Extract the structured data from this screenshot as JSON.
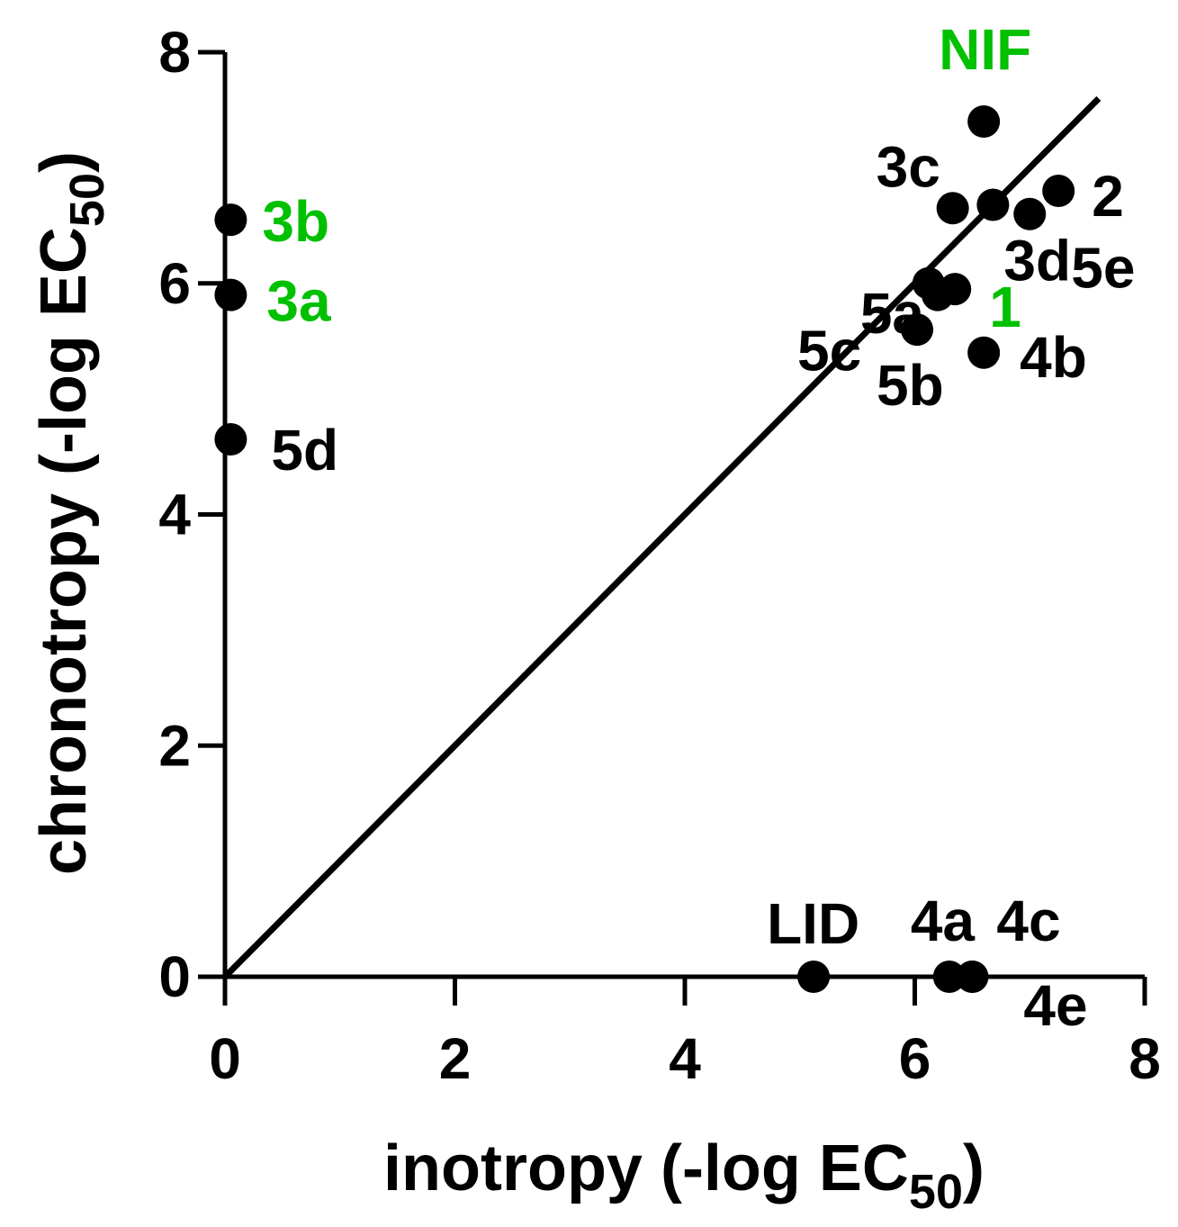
{
  "chart_data": {
    "type": "scatter",
    "title": "",
    "xlabel": {
      "main": "inotropy (-log EC",
      "sub": "50",
      "close": ")"
    },
    "ylabel": {
      "main": "chronotropy (-log EC",
      "sub": "50",
      "close": ")"
    },
    "xlim": [
      0,
      8
    ],
    "ylim": [
      0,
      8
    ],
    "xticks": [
      "0",
      "2",
      "4",
      "6",
      "8"
    ],
    "yticks": [
      "0",
      "2",
      "4",
      "6",
      "8"
    ],
    "reference_line": {
      "x": [
        0,
        7.6
      ],
      "y": [
        0,
        7.6
      ]
    },
    "points": [
      {
        "label": "NIF",
        "x": 6.6,
        "y": 7.4,
        "label_color": "#00c000"
      },
      {
        "label": "3c",
        "x": 6.33,
        "y": 6.65,
        "label_color": "#000000"
      },
      {
        "label": "2",
        "x": 7.25,
        "y": 6.8,
        "label_color": "#000000"
      },
      {
        "label": "5e",
        "x": 7.0,
        "y": 6.6,
        "label_color": "#000000"
      },
      {
        "label": "3d",
        "x": 6.68,
        "y": 6.68,
        "label_color": "#000000"
      },
      {
        "label": "5a",
        "x": 6.12,
        "y": 6.0,
        "label_color": "#000000"
      },
      {
        "label": "1",
        "x": 6.35,
        "y": 5.95,
        "label_color": "#00c000"
      },
      {
        "label": "5c",
        "x": 6.2,
        "y": 5.9,
        "label_color": "#000000"
      },
      {
        "label": "5b",
        "x": 6.02,
        "y": 5.6,
        "label_color": "#000000"
      },
      {
        "label": "4b",
        "x": 6.6,
        "y": 5.4,
        "label_color": "#000000"
      },
      {
        "label": "3b",
        "x": 0.05,
        "y": 6.55,
        "label_color": "#00c000"
      },
      {
        "label": "3a",
        "x": 0.05,
        "y": 5.9,
        "label_color": "#00c000"
      },
      {
        "label": "5d",
        "x": 0.05,
        "y": 4.65,
        "label_color": "#000000"
      },
      {
        "label": "LID",
        "x": 5.12,
        "y": 0.0,
        "label_color": "#000000"
      },
      {
        "label": "4a",
        "x": 6.3,
        "y": 0.0,
        "label_color": "#000000"
      },
      {
        "label": "4c",
        "x": 6.5,
        "y": 0.0,
        "label_color": "#000000"
      },
      {
        "label": "4e",
        "x": 6.5,
        "y": 0.0,
        "label_color": "#000000"
      }
    ],
    "grid": false,
    "legend": "none",
    "colors": {
      "marker": "#000000",
      "axis": "#000000",
      "highlight_label": "#00c000"
    }
  }
}
